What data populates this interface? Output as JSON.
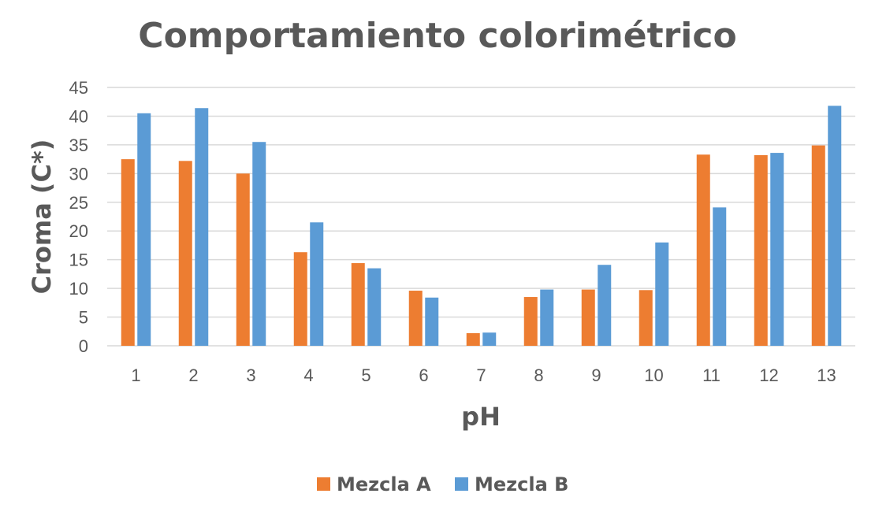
{
  "chart_data": {
    "type": "bar",
    "title": "Comportamiento colorimétrico",
    "xlabel": "pH",
    "ylabel": "Croma (C*)",
    "categories": [
      "1",
      "2",
      "3",
      "4",
      "5",
      "6",
      "7",
      "8",
      "9",
      "10",
      "11",
      "12",
      "13"
    ],
    "series": [
      {
        "name": "Mezcla A",
        "color": "#ED7D31",
        "values": [
          32.5,
          32.2,
          30.0,
          16.3,
          14.4,
          9.6,
          2.2,
          8.5,
          9.8,
          9.7,
          33.3,
          33.2,
          34.9
        ]
      },
      {
        "name": "Mezcla B",
        "color": "#5B9BD5",
        "values": [
          40.5,
          41.4,
          35.5,
          21.5,
          13.5,
          8.4,
          2.3,
          9.8,
          14.1,
          18.0,
          24.1,
          33.6,
          41.8
        ]
      }
    ],
    "ylim": [
      0,
      45
    ],
    "yticks": [
      "0",
      "5",
      "10",
      "15",
      "20",
      "25",
      "30",
      "35",
      "40",
      "45"
    ],
    "grid": true,
    "legend_position": "bottom"
  }
}
